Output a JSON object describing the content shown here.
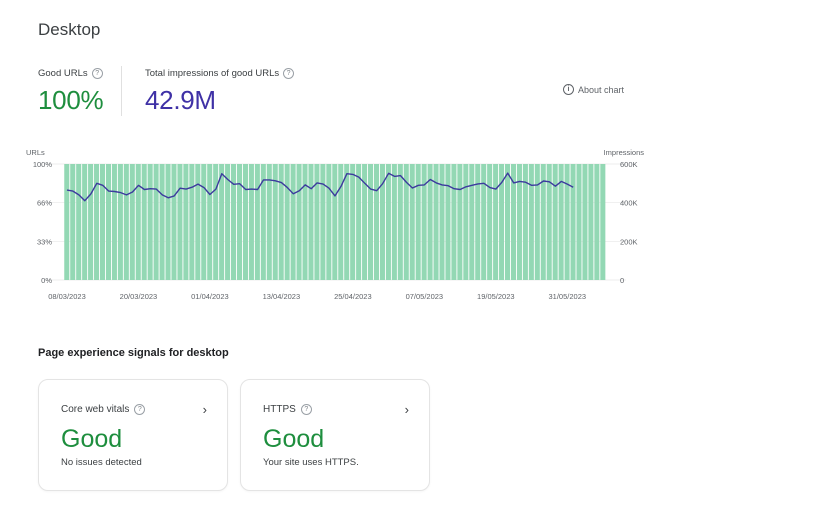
{
  "page": {
    "title": "Desktop"
  },
  "metrics": {
    "good_urls": {
      "label": "Good URLs",
      "value": "100%"
    },
    "impressions": {
      "label": "Total impressions of good URLs",
      "value": "42.9M"
    }
  },
  "about_chart": {
    "label": "About chart",
    "icon": "info-icon"
  },
  "colors": {
    "bars": "#93d8b4",
    "line": "#3c3a9e",
    "good": "#1e8e3e",
    "impressions": "#3f31a6"
  },
  "chart_data": {
    "type": "bar",
    "left_axis": {
      "label": "URLs",
      "ticks": [
        "100%",
        "66%",
        "33%",
        "0%"
      ],
      "ylim": [
        0,
        100
      ]
    },
    "right_axis": {
      "label": "Impressions",
      "ticks": [
        "600K",
        "400K",
        "200K",
        "0"
      ],
      "ylim": [
        0,
        600000
      ]
    },
    "x_ticks": [
      "08/03/2023",
      "20/03/2023",
      "01/04/2023",
      "13/04/2023",
      "25/04/2023",
      "07/05/2023",
      "19/05/2023",
      "31/05/2023"
    ],
    "x_range": [
      "08/03/2023",
      "06/06/2023"
    ],
    "series": [
      {
        "name": "Good URLs",
        "type": "bar",
        "axis": "left",
        "values_constant": 100
      },
      {
        "name": "Impressions",
        "type": "line",
        "axis": "right",
        "values": [
          465000,
          460000,
          440000,
          410000,
          445000,
          500000,
          490000,
          460000,
          458000,
          452000,
          440000,
          455000,
          490000,
          468000,
          472000,
          470000,
          440000,
          425000,
          435000,
          475000,
          470000,
          480000,
          496000,
          478000,
          442000,
          470000,
          550000,
          520000,
          495000,
          498000,
          468000,
          470000,
          468000,
          518000,
          518000,
          513000,
          504000,
          478000,
          446000,
          462000,
          492000,
          472000,
          502000,
          496000,
          475000,
          435000,
          484000,
          550000,
          546000,
          532000,
          500000,
          470000,
          462000,
          498000,
          552000,
          536000,
          540000,
          505000,
          476000,
          490000,
          492000,
          520000,
          502000,
          492000,
          488000,
          472000,
          468000,
          482000,
          490000,
          497000,
          500000,
          478000,
          470000,
          505000,
          553000,
          502000,
          510000,
          506000,
          490000,
          492000,
          512000,
          508000,
          485000,
          510000,
          496000,
          480000
        ]
      }
    ]
  },
  "signals": {
    "title": "Page experience signals for desktop",
    "cards": [
      {
        "title": "Core web vitals",
        "status": "Good",
        "description": "No issues detected"
      },
      {
        "title": "HTTPS",
        "status": "Good",
        "description": "Your site uses HTTPS."
      }
    ]
  }
}
